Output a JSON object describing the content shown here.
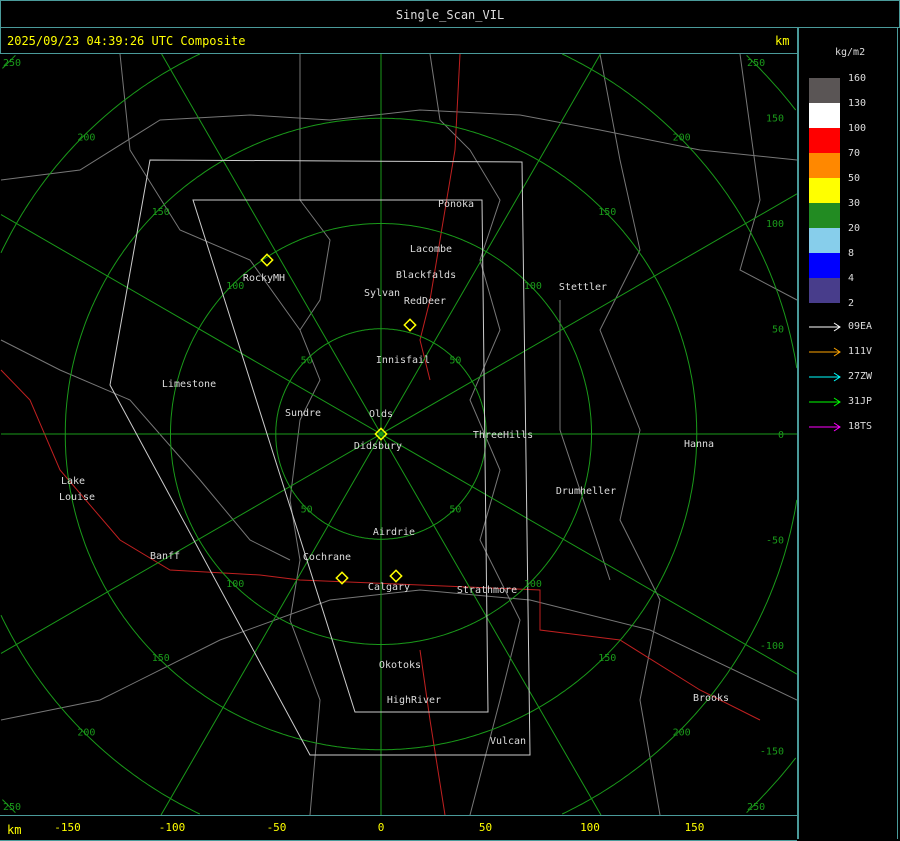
{
  "title": "Single_Scan_VIL",
  "timestamp": "2025/09/23 04:39:26 UTC Composite",
  "unit_km": "km",
  "legend": {
    "unit": "kg/m2",
    "levels": [
      {
        "label": "160",
        "color": "#5a5555"
      },
      {
        "label": "130",
        "color": "#ffffff"
      },
      {
        "label": "100",
        "color": "#ff0000"
      },
      {
        "label": "70",
        "color": "#ff8800"
      },
      {
        "label": "50",
        "color": "#ffff00"
      },
      {
        "label": "30",
        "color": "#228b22"
      },
      {
        "label": "20",
        "color": "#87ceeb"
      },
      {
        "label": "8",
        "color": "#0000ff"
      },
      {
        "label": "4",
        "color": "#483d8b"
      },
      {
        "label": "2",
        "color": null
      }
    ],
    "radars": [
      {
        "label": "09EA",
        "color": "#ffffff"
      },
      {
        "label": "111V",
        "color": "#ffa500"
      },
      {
        "label": "27ZW",
        "color": "#00ffff"
      },
      {
        "label": "31JP",
        "color": "#00ff00"
      },
      {
        "label": "18TS",
        "color": "#ff00ff"
      }
    ]
  },
  "x_ticks": [
    "-150",
    "-100",
    "-50",
    "0",
    "50",
    "100",
    "150"
  ],
  "y_ticks": [
    "150",
    "100",
    "50",
    "0",
    "-50",
    "-100",
    "-150"
  ],
  "ring_labels": [
    "50",
    "100",
    "150",
    "200",
    "250"
  ],
  "cities": [
    "Ponoka",
    "Lacombe",
    "Blackfalds",
    "Sylvan",
    "RedDeer",
    "RockyMH",
    "Stettler",
    "Innisfail",
    "Limestone",
    "Sundre",
    "Olds",
    "Didsbury",
    "ThreeHills",
    "Hanna",
    "Drumheller",
    "Lake",
    "Louise",
    "Airdrie",
    "Banff",
    "Cochrane",
    "Calgary",
    "Strathmore",
    "Okotoks",
    "HighRiver",
    "Brooks",
    "Vulcan"
  ]
}
